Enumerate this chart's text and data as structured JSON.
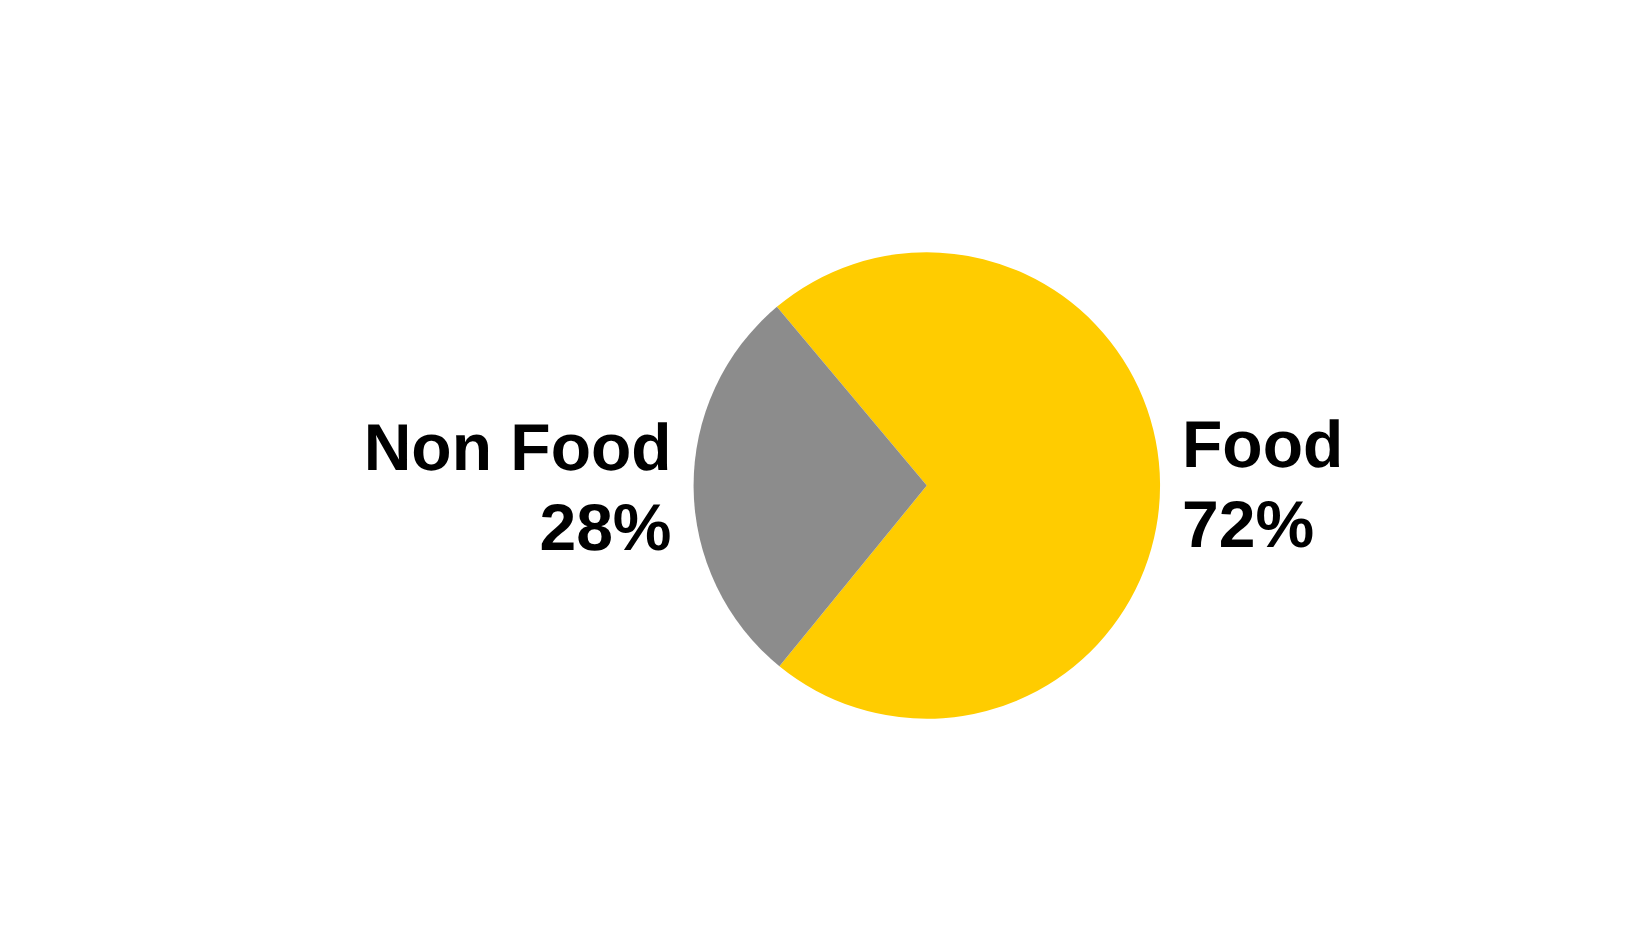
{
  "chart_data": {
    "type": "pie",
    "categories": [
      "Food",
      "Non Food"
    ],
    "values": [
      72,
      28
    ],
    "colors": [
      "#ffcc00",
      "#8c8c8c"
    ],
    "value_labels": [
      "72%",
      "28%"
    ],
    "legend": false
  }
}
